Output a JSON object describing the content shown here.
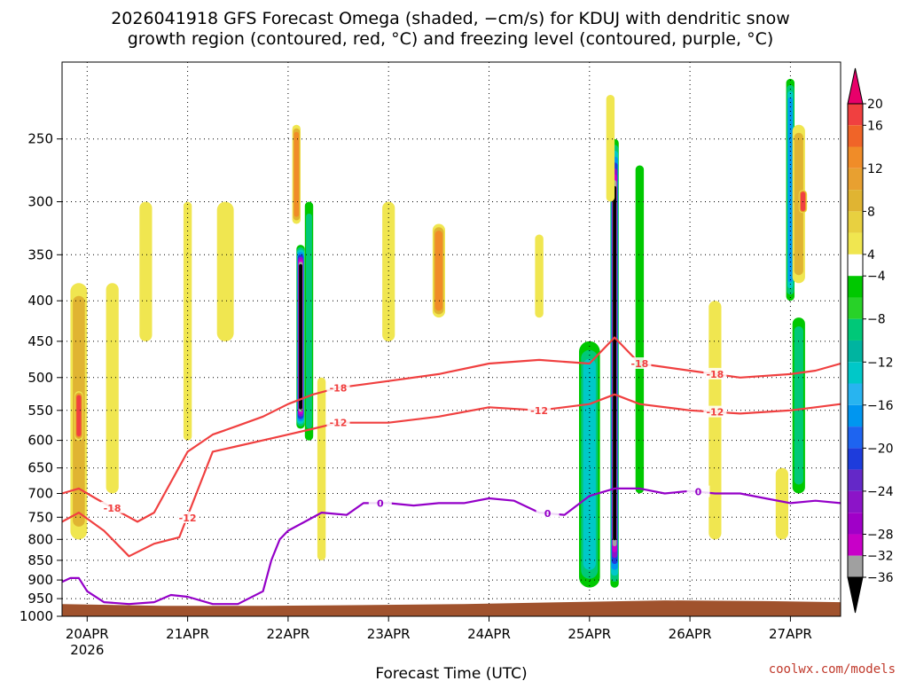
{
  "title_line1": "2026041918 GFS Forecast Omega (shaded, −cm/s) for KDUJ with dendritic snow",
  "title_line2": "growth region (contoured, red, °C) and freezing level (contoured, purple, °C)",
  "credit": "coolwx.com/models",
  "colors": {
    "dendritic": "#f04040",
    "freezing": "#9400c8",
    "ground": "#a0522d",
    "grid": "#000000"
  },
  "chart_data": {
    "type": "heatmap",
    "xlabel": "Forecast Time (UTC)",
    "ylabel": "",
    "y_scale": "pressure (reversed, log-like)",
    "ylim": [
      1000,
      200
    ],
    "y_ticks": [
      250,
      300,
      350,
      400,
      450,
      500,
      550,
      600,
      650,
      700,
      750,
      800,
      850,
      900,
      950,
      1000
    ],
    "x_ticks": [
      {
        "label": "20APR",
        "sublabel": "2026",
        "time": "2026-04-20T00"
      },
      {
        "label": "21APR",
        "sublabel": "",
        "time": "2026-04-21T00"
      },
      {
        "label": "22APR",
        "sublabel": "",
        "time": "2026-04-22T00"
      },
      {
        "label": "23APR",
        "sublabel": "",
        "time": "2026-04-23T00"
      },
      {
        "label": "24APR",
        "sublabel": "",
        "time": "2026-04-24T00"
      },
      {
        "label": "25APR",
        "sublabel": "",
        "time": "2026-04-25T00"
      },
      {
        "label": "26APR",
        "sublabel": "",
        "time": "2026-04-26T00"
      },
      {
        "label": "27APR",
        "sublabel": "",
        "time": "2026-04-27T00"
      }
    ],
    "grid": true,
    "colorbar": {
      "ticks": [
        "20",
        "16",
        "12",
        "8",
        "4",
        "−4",
        "−8",
        "−12",
        "−16",
        "−20",
        "−24",
        "−28",
        "−32",
        "−36"
      ],
      "bins": [
        {
          "range": "> 20",
          "color": "#e8006a"
        },
        {
          "range": "16 to 20",
          "color": "#f04040"
        },
        {
          "range": "14 to 16",
          "color": "#f06428"
        },
        {
          "range": "12 to 14",
          "color": "#f08c28"
        },
        {
          "range": "10 to 12",
          "color": "#e8a030"
        },
        {
          "range": "8 to 10",
          "color": "#e0b432"
        },
        {
          "range": "6 to 8",
          "color": "#e8d040"
        },
        {
          "range": "4 to 6",
          "color": "#f0e650"
        },
        {
          "range": "-4 to 4",
          "color": "#ffffff"
        },
        {
          "range": "-6 to -4",
          "color": "#00c800"
        },
        {
          "range": "-8 to -6",
          "color": "#28d228"
        },
        {
          "range": "-10 to -8",
          "color": "#00c878"
        },
        {
          "range": "-12 to -10",
          "color": "#00b4a0"
        },
        {
          "range": "-14 to -12",
          "color": "#00c8c8"
        },
        {
          "range": "-16 to -14",
          "color": "#28b4f0"
        },
        {
          "range": "-18 to -16",
          "color": "#0096f0"
        },
        {
          "range": "-20 to -18",
          "color": "#1e64f0"
        },
        {
          "range": "-22 to -20",
          "color": "#1e3cdc"
        },
        {
          "range": "-24 to -22",
          "color": "#6428c8"
        },
        {
          "range": "-26 to -24",
          "color": "#8c14c8"
        },
        {
          "range": "-28 to -26",
          "color": "#a000c8"
        },
        {
          "range": "-32 to -28",
          "color": "#c800c8"
        },
        {
          "range": "-36 to -32",
          "color": "#a0a0a0"
        },
        {
          "range": "< -36",
          "color": "#000000"
        }
      ]
    },
    "omega_features": [
      {
        "t": "2026-04-19T22",
        "p_top": 380,
        "p_bot": 800,
        "value": 12,
        "width_h": 4
      },
      {
        "t": "2026-04-19T22",
        "p_top": 520,
        "p_bot": 600,
        "value": 20,
        "width_h": 2
      },
      {
        "t": "2026-04-20T06",
        "p_top": 380,
        "p_bot": 700,
        "value": 5,
        "width_h": 3
      },
      {
        "t": "2026-04-20T14",
        "p_top": 300,
        "p_bot": 450,
        "value": 5,
        "width_h": 3
      },
      {
        "t": "2026-04-21T00",
        "p_top": 300,
        "p_bot": 600,
        "value": 5,
        "width_h": 2
      },
      {
        "t": "2026-04-21T09",
        "p_top": 300,
        "p_bot": 450,
        "value": 8,
        "width_h": 4
      },
      {
        "t": "2026-04-22T02",
        "p_top": 240,
        "p_bot": 320,
        "value": 14,
        "width_h": 2
      },
      {
        "t": "2026-04-22T03",
        "p_top": 340,
        "p_bot": 580,
        "value": -40,
        "width_h": 2
      },
      {
        "t": "2026-04-22T05",
        "p_top": 300,
        "p_bot": 600,
        "value": -10,
        "width_h": 2
      },
      {
        "t": "2026-04-22T08",
        "p_top": 500,
        "p_bot": 850,
        "value": 8,
        "width_h": 2
      },
      {
        "t": "2026-04-23T00",
        "p_top": 300,
        "p_bot": 450,
        "value": 5,
        "width_h": 3
      },
      {
        "t": "2026-04-23T12",
        "p_top": 320,
        "p_bot": 420,
        "value": 14,
        "width_h": 3
      },
      {
        "t": "2026-04-24T12",
        "p_top": 330,
        "p_bot": 420,
        "value": 5,
        "width_h": 2
      },
      {
        "t": "2026-04-25T00",
        "p_top": 450,
        "p_bot": 920,
        "value": -16,
        "width_h": 5
      },
      {
        "t": "2026-04-25T06",
        "p_top": 250,
        "p_bot": 920,
        "value": -40,
        "width_h": 2
      },
      {
        "t": "2026-04-25T05",
        "p_top": 220,
        "p_bot": 300,
        "value": 8,
        "width_h": 2
      },
      {
        "t": "2026-04-25T12",
        "p_top": 270,
        "p_bot": 700,
        "value": -7,
        "width_h": 2
      },
      {
        "t": "2026-04-26T06",
        "p_top": 400,
        "p_bot": 800,
        "value": 5,
        "width_h": 3
      },
      {
        "t": "2026-04-27T00",
        "p_top": 210,
        "p_bot": 400,
        "value": -20,
        "width_h": 2
      },
      {
        "t": "2026-04-27T02",
        "p_top": 240,
        "p_bot": 380,
        "value": 12,
        "width_h": 3
      },
      {
        "t": "2026-04-27T03",
        "p_top": 290,
        "p_bot": 310,
        "value": 17,
        "width_h": 2
      },
      {
        "t": "2026-04-27T02",
        "p_top": 420,
        "p_bot": 700,
        "value": -12,
        "width_h": 3
      },
      {
        "t": "2026-04-26T22",
        "p_top": 650,
        "p_bot": 800,
        "value": 8,
        "width_h": 3
      }
    ],
    "contours": [
      {
        "label": "-18",
        "color": "dendritic",
        "labels_at": [
          "2026-04-20T06",
          "2026-04-22T12",
          "2026-04-25T12",
          "2026-04-26T06"
        ],
        "points": [
          [
            "2026-04-19T18",
            700
          ],
          [
            "2026-04-19T22",
            690
          ],
          [
            "2026-04-20T02",
            710
          ],
          [
            "2026-04-20T08",
            740
          ],
          [
            "2026-04-20T12",
            760
          ],
          [
            "2026-04-20T16",
            740
          ],
          [
            "2026-04-21T00",
            620
          ],
          [
            "2026-04-21T06",
            590
          ],
          [
            "2026-04-21T12",
            575
          ],
          [
            "2026-04-21T18",
            560
          ],
          [
            "2026-04-22T00",
            540
          ],
          [
            "2026-04-22T06",
            525
          ],
          [
            "2026-04-22T12",
            515
          ],
          [
            "2026-04-23T00",
            505
          ],
          [
            "2026-04-23T12",
            495
          ],
          [
            "2026-04-24T00",
            480
          ],
          [
            "2026-04-24T12",
            475
          ],
          [
            "2026-04-25T00",
            480
          ],
          [
            "2026-04-25T06",
            445
          ],
          [
            "2026-04-25T12",
            480
          ],
          [
            "2026-04-26T00",
            490
          ],
          [
            "2026-04-26T12",
            500
          ],
          [
            "2026-04-27T00",
            495
          ],
          [
            "2026-04-27T06",
            490
          ],
          [
            "2026-04-27T12",
            480
          ]
        ]
      },
      {
        "label": "-12",
        "color": "dendritic",
        "labels_at": [
          "2026-04-21T00",
          "2026-04-22T12",
          "2026-04-24T12",
          "2026-04-26T06"
        ],
        "points": [
          [
            "2026-04-19T18",
            760
          ],
          [
            "2026-04-19T22",
            740
          ],
          [
            "2026-04-20T04",
            780
          ],
          [
            "2026-04-20T10",
            840
          ],
          [
            "2026-04-20T16",
            810
          ],
          [
            "2026-04-20T22",
            795
          ],
          [
            "2026-04-21T06",
            620
          ],
          [
            "2026-04-21T12",
            610
          ],
          [
            "2026-04-21T18",
            600
          ],
          [
            "2026-04-22T00",
            590
          ],
          [
            "2026-04-22T06",
            580
          ],
          [
            "2026-04-22T12",
            570
          ],
          [
            "2026-04-23T00",
            570
          ],
          [
            "2026-04-23T12",
            560
          ],
          [
            "2026-04-24T00",
            545
          ],
          [
            "2026-04-24T12",
            550
          ],
          [
            "2026-04-25T00",
            540
          ],
          [
            "2026-04-25T06",
            525
          ],
          [
            "2026-04-25T12",
            540
          ],
          [
            "2026-04-26T00",
            550
          ],
          [
            "2026-04-26T12",
            555
          ],
          [
            "2026-04-27T00",
            550
          ],
          [
            "2026-04-27T06",
            545
          ],
          [
            "2026-04-27T12",
            540
          ]
        ]
      },
      {
        "label": "0",
        "color": "freezing",
        "labels_at": [
          "2026-04-22T22",
          "2026-04-24T14",
          "2026-04-26T02"
        ],
        "points": [
          [
            "2026-04-19T18",
            905
          ],
          [
            "2026-04-19T20",
            895
          ],
          [
            "2026-04-19T22",
            895
          ],
          [
            "2026-04-20T00",
            930
          ],
          [
            "2026-04-20T04",
            960
          ],
          [
            "2026-04-20T10",
            965
          ],
          [
            "2026-04-20T16",
            960
          ],
          [
            "2026-04-20T20",
            940
          ],
          [
            "2026-04-21T00",
            945
          ],
          [
            "2026-04-21T06",
            965
          ],
          [
            "2026-04-21T12",
            965
          ],
          [
            "2026-04-21T18",
            930
          ],
          [
            "2026-04-21T20",
            850
          ],
          [
            "2026-04-21T22",
            800
          ],
          [
            "2026-04-22T00",
            780
          ],
          [
            "2026-04-22T04",
            760
          ],
          [
            "2026-04-22T08",
            740
          ],
          [
            "2026-04-22T14",
            745
          ],
          [
            "2026-04-22T18",
            720
          ],
          [
            "2026-04-23T00",
            720
          ],
          [
            "2026-04-23T06",
            725
          ],
          [
            "2026-04-23T12",
            720
          ],
          [
            "2026-04-23T18",
            720
          ],
          [
            "2026-04-24T00",
            710
          ],
          [
            "2026-04-24T06",
            715
          ],
          [
            "2026-04-24T12",
            740
          ],
          [
            "2026-04-24T18",
            745
          ],
          [
            "2026-04-25T00",
            705
          ],
          [
            "2026-04-25T06",
            690
          ],
          [
            "2026-04-25T12",
            690
          ],
          [
            "2026-04-25T18",
            700
          ],
          [
            "2026-04-26T00",
            695
          ],
          [
            "2026-04-26T06",
            700
          ],
          [
            "2026-04-26T12",
            700
          ],
          [
            "2026-04-26T18",
            710
          ],
          [
            "2026-04-27T00",
            720
          ],
          [
            "2026-04-27T06",
            715
          ],
          [
            "2026-04-27T12",
            720
          ]
        ]
      }
    ],
    "ground_surface": [
      [
        "2026-04-19T18",
        965
      ],
      [
        "2026-04-20T18",
        970
      ],
      [
        "2026-04-21T18",
        970
      ],
      [
        "2026-04-22T18",
        968
      ],
      [
        "2026-04-23T18",
        965
      ],
      [
        "2026-04-24T18",
        960
      ],
      [
        "2026-04-25T18",
        955
      ],
      [
        "2026-04-26T18",
        957
      ],
      [
        "2026-04-27T12",
        960
      ]
    ]
  }
}
